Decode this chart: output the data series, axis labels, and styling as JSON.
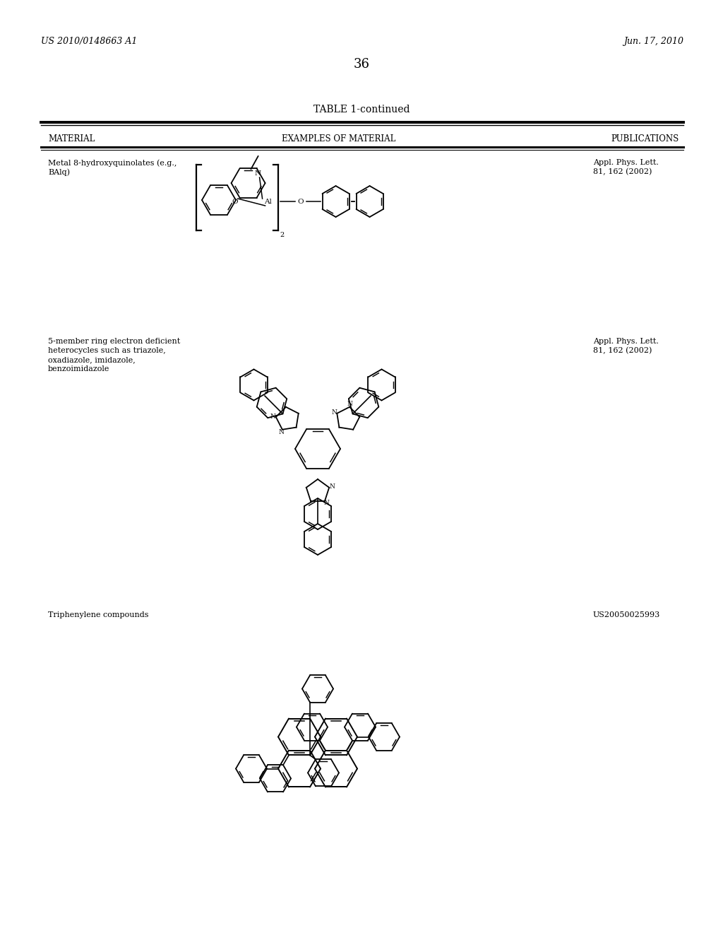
{
  "bg_color": "#ffffff",
  "header_left": "US 2010/0148663 A1",
  "header_right": "Jun. 17, 2010",
  "page_number": "36",
  "table_title": "TABLE 1-continued",
  "col1_header": "MATERIAL",
  "col2_header": "EXAMPLES OF MATERIAL",
  "col3_header": "PUBLICATIONS",
  "row1_mat_l1": "Metal 8-hydroxyquinolates (e.g.,",
  "row1_mat_l2": "BAlq)",
  "row1_pub_l1": "Appl. Phys. Lett.",
  "row1_pub_l2": "81, 162 (2002)",
  "row2_mat_l1": "5-member ring electron deficient",
  "row2_mat_l2": "heterocycles such as triazole,",
  "row2_mat_l3": "oxadiazole, imidazole,",
  "row2_mat_l4": "benzoimidazole",
  "row2_pub_l1": "Appl. Phys. Lett.",
  "row2_pub_l2": "81, 162 (2002)",
  "row3_mat": "Triphenylene compounds",
  "row3_pub": "US20050025993",
  "text_color": "#000000",
  "line_color": "#000000"
}
